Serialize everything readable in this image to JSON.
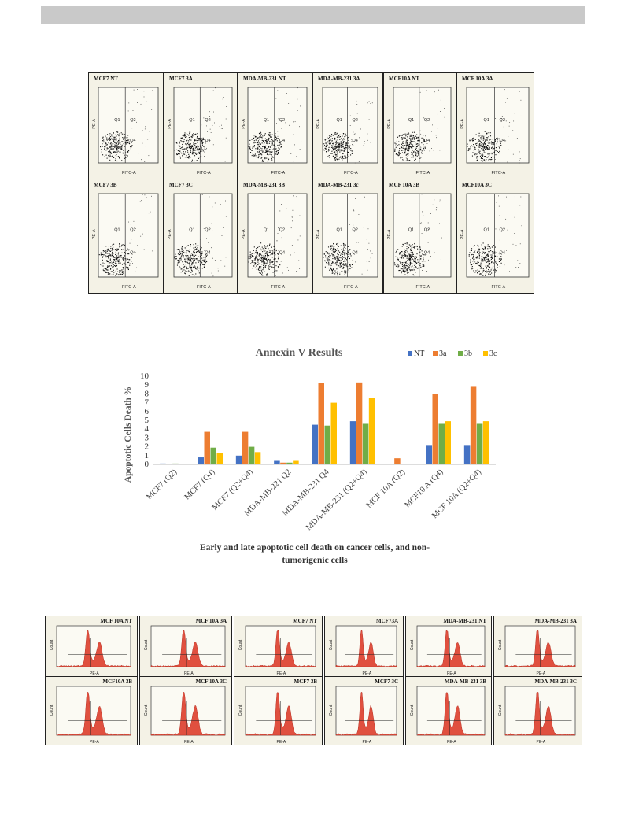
{
  "flow_panels": {
    "scatter_row1": [
      "MCF7 NT",
      "MCF7 3A",
      "MDA-MB-231 NT",
      "MDA-MB-231 3A",
      "MCF10A NT",
      "MCF 10A 3A"
    ],
    "scatter_row2": [
      "MCF7 3B",
      "MCF7 3C",
      "MDA-MB-231 3B",
      "MDA-MB-231 3c",
      "MCF 10A 3B",
      "MCF10A 3C"
    ],
    "scatter_quadrants": [
      "Q1",
      "Q2",
      "Q4"
    ],
    "scatter_xlabel": "FITC-A",
    "scatter_ylabel": "PE-A",
    "hist_row1": [
      "MCF 10A NT",
      "MCF 10A 3A",
      "MCF7 NT",
      "MCF73A",
      "MDA-MB-231 NT",
      "MDA-MB-231 3A"
    ],
    "hist_row2": [
      "MCF10A 3B",
      "MCF 10A 3C",
      "MCF7 3B",
      "MCF7 3C",
      "MDA-MB-231 3B",
      "MDA-MB-231 3C"
    ],
    "hist_xlabel": "PE-A",
    "hist_ylabel": "Count"
  },
  "chart_data": {
    "type": "bar",
    "title": "Annexin V Results",
    "ylabel": "Apoptotic  Cells Death  %",
    "xlabel": "",
    "ylim": [
      0,
      10
    ],
    "yticks": [
      0,
      1,
      2,
      3,
      4,
      5,
      6,
      7,
      8,
      9,
      10
    ],
    "categories": [
      "MCF7 (Q2)",
      "MCF7 (Q4)",
      "MCF7 (Q2+Q4)",
      "MDA-MB-221 Q2",
      "MDA-MB-231 Q4",
      "MDA-MB-231 (Q2+Q4)",
      "MCF 10A (Q2)",
      "MCF10 A (Q4)",
      "MCF 10A (Q2+Q4)"
    ],
    "series": [
      {
        "name": "NT",
        "color": "#4472c4",
        "values": [
          0.1,
          0.8,
          1.0,
          0.4,
          4.5,
          4.9,
          0.0,
          2.2,
          2.2
        ]
      },
      {
        "name": "3a",
        "color": "#ed7d31",
        "values": [
          0.0,
          3.7,
          3.7,
          0.2,
          9.2,
          9.3,
          0.7,
          8.0,
          8.8
        ]
      },
      {
        "name": "3b",
        "color": "#70ad47",
        "values": [
          0.1,
          1.9,
          2.0,
          0.2,
          4.4,
          4.6,
          0.0,
          4.6,
          4.6
        ]
      },
      {
        "name": "3c",
        "color": "#ffc000",
        "values": [
          0.0,
          1.3,
          1.4,
          0.4,
          7.0,
          7.5,
          0.0,
          4.9,
          4.9
        ]
      }
    ],
    "legend_position": "top-right",
    "grid": false
  },
  "caption": {
    "line1": "Early  and  late  apoptotic  cell  death  on  cancer  cells, and  non-",
    "line2": "tumorigenic  cells"
  }
}
